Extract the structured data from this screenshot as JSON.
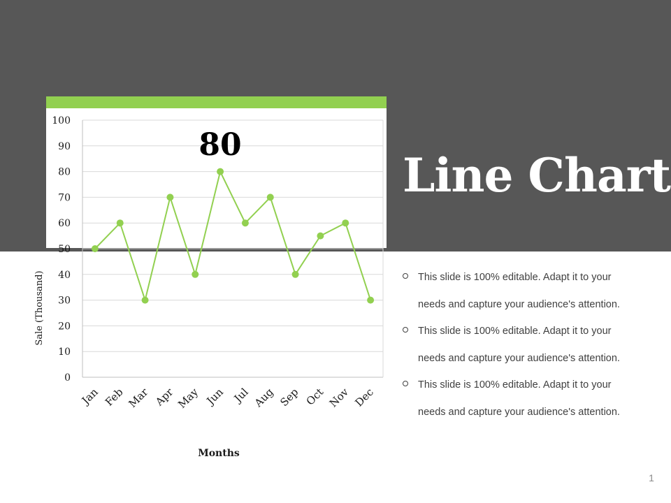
{
  "slide": {
    "title": "Line Chart",
    "page_number": "1",
    "bullets": [
      {
        "text_line1": "This slide is 100% editable. Adapt it to your",
        "text_line2": "needs and capture your audience's attention."
      },
      {
        "text_line1": "This slide is 100% editable. Adapt it to your",
        "text_line2": "needs and capture your audience's attention."
      },
      {
        "text_line1": "This slide is 100% editable. Adapt it to your",
        "text_line2": "needs and capture your audience's attention."
      }
    ]
  },
  "colors": {
    "background_dark": "#575757",
    "accent_green": "#92d050",
    "text": "#404040"
  },
  "chart_data": {
    "type": "line",
    "categories": [
      "Jan",
      "Feb",
      "Mar",
      "Apr",
      "May",
      "Jun",
      "Jul",
      "Aug",
      "Sep",
      "Oct",
      "Nov",
      "Dec"
    ],
    "series": [
      {
        "values": [
          50,
          60,
          30,
          70,
          40,
          80,
          60,
          70,
          40,
          55,
          60,
          30
        ]
      }
    ],
    "callout": "80",
    "xlabel": "Months",
    "ylabel": "Sale (Thousand)",
    "ylim": [
      0,
      100
    ],
    "yticks": [
      "0",
      "10",
      "20",
      "30",
      "40",
      "50",
      "60",
      "70",
      "80",
      "90",
      "100"
    ],
    "grid": true,
    "legend": "none"
  }
}
